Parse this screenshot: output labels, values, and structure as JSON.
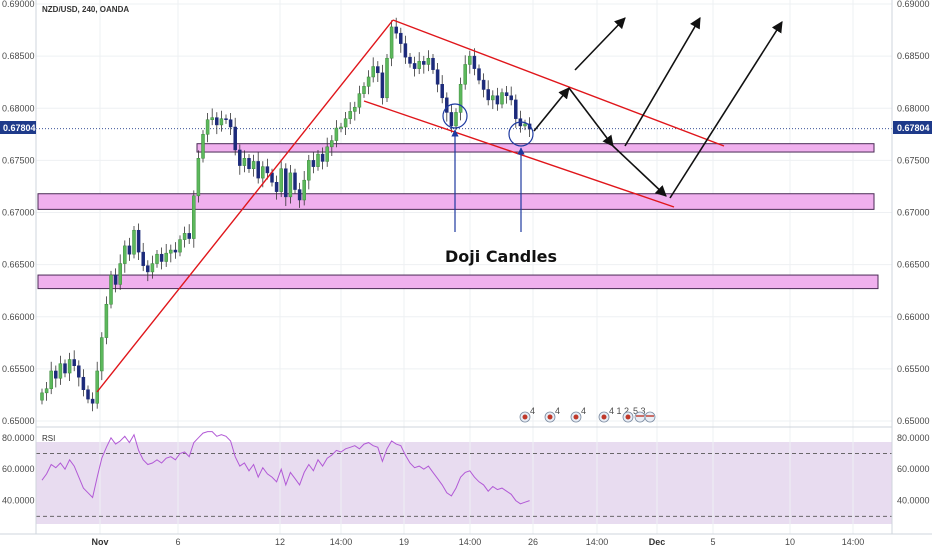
{
  "header": {
    "symbol_label": "NZD/USD, 240, OANDA"
  },
  "chart_data": [
    {
      "type": "candlestick",
      "title": "NZD/USD, 240, OANDA",
      "ylim": [
        0.65,
        0.69
      ],
      "y_ticks": [
        "0.69000",
        "0.68500",
        "0.68000",
        "0.67500",
        "0.67000",
        "0.66500",
        "0.66000",
        "0.65500",
        "0.65000"
      ],
      "x_ticks": [
        {
          "label": "Nov",
          "bold": true
        },
        {
          "label": "6",
          "bold": false
        },
        {
          "label": "12",
          "bold": false
        },
        {
          "label": "14:00",
          "bold": false
        },
        {
          "label": "19",
          "bold": false
        },
        {
          "label": "14:00",
          "bold": false
        },
        {
          "label": "26",
          "bold": false
        },
        {
          "label": "14:00",
          "bold": false
        },
        {
          "label": "Dec",
          "bold": true
        },
        {
          "label": "5",
          "bold": false
        },
        {
          "label": "10",
          "bold": false
        },
        {
          "label": "14:00",
          "bold": false
        }
      ],
      "last_price": "0.67804",
      "close_series": [
        0.6527,
        0.6531,
        0.6548,
        0.6541,
        0.6555,
        0.6546,
        0.6559,
        0.6553,
        0.6542,
        0.653,
        0.6521,
        0.6517,
        0.6548,
        0.658,
        0.6612,
        0.664,
        0.6631,
        0.6651,
        0.6668,
        0.666,
        0.6683,
        0.6662,
        0.6649,
        0.6643,
        0.6651,
        0.666,
        0.6653,
        0.6661,
        0.6664,
        0.6662,
        0.6674,
        0.668,
        0.6675,
        0.6716,
        0.6752,
        0.6775,
        0.6789,
        0.6791,
        0.6784,
        0.679,
        0.6789,
        0.6782,
        0.676,
        0.6745,
        0.6752,
        0.6742,
        0.6749,
        0.6733,
        0.6744,
        0.6738,
        0.6729,
        0.672,
        0.6742,
        0.6715,
        0.6738,
        0.6722,
        0.6712,
        0.6731,
        0.675,
        0.6744,
        0.6756,
        0.6749,
        0.6763,
        0.6769,
        0.6781,
        0.6782,
        0.679,
        0.6797,
        0.6801,
        0.6814,
        0.6821,
        0.683,
        0.684,
        0.6834,
        0.681,
        0.6848,
        0.6878,
        0.6872,
        0.6862,
        0.6849,
        0.6843,
        0.6838,
        0.6845,
        0.6842,
        0.6848,
        0.6837,
        0.6823,
        0.681,
        0.6796,
        0.6783,
        0.6796,
        0.6823,
        0.6842,
        0.685,
        0.6838,
        0.6827,
        0.6818,
        0.6808,
        0.6812,
        0.6804,
        0.6815,
        0.6812,
        0.6808,
        0.679,
        0.6783,
        0.6785,
        0.678
      ],
      "resistance_zones": [
        [
          0.6758,
          0.6766
        ],
        [
          0.6703,
          0.6718
        ],
        [
          0.6627,
          0.664
        ]
      ],
      "annotations": [
        "Doji Candles"
      ],
      "event_badges": [
        "4",
        "4",
        "4",
        "4 1 2",
        "5 3"
      ]
    },
    {
      "type": "line",
      "title": "RSI",
      "ylim": [
        20,
        85
      ],
      "y_ticks": [
        "80.0000",
        "60.0000",
        "40.0000"
      ],
      "levels": [
        70,
        30
      ],
      "values": [
        53,
        57,
        63,
        61,
        64,
        60,
        66,
        62,
        55,
        48,
        45,
        42,
        55,
        67,
        74,
        80,
        76,
        78,
        81,
        77,
        82,
        72,
        66,
        63,
        64,
        66,
        64,
        67,
        68,
        66,
        70,
        71,
        68,
        77,
        80,
        83,
        84,
        84,
        81,
        82,
        81,
        78,
        68,
        62,
        64,
        59,
        63,
        55,
        61,
        57,
        55,
        52,
        60,
        50,
        58,
        54,
        50,
        58,
        63,
        59,
        66,
        62,
        67,
        69,
        72,
        71,
        73,
        74,
        75,
        73,
        76,
        77,
        75,
        74,
        65,
        73,
        78,
        76,
        75,
        69,
        64,
        61,
        62,
        60,
        62,
        58,
        54,
        50,
        45,
        43,
        48,
        55,
        58,
        59,
        55,
        52,
        50,
        46,
        49,
        47,
        48,
        46,
        44,
        40,
        38,
        39,
        40
      ]
    }
  ]
}
